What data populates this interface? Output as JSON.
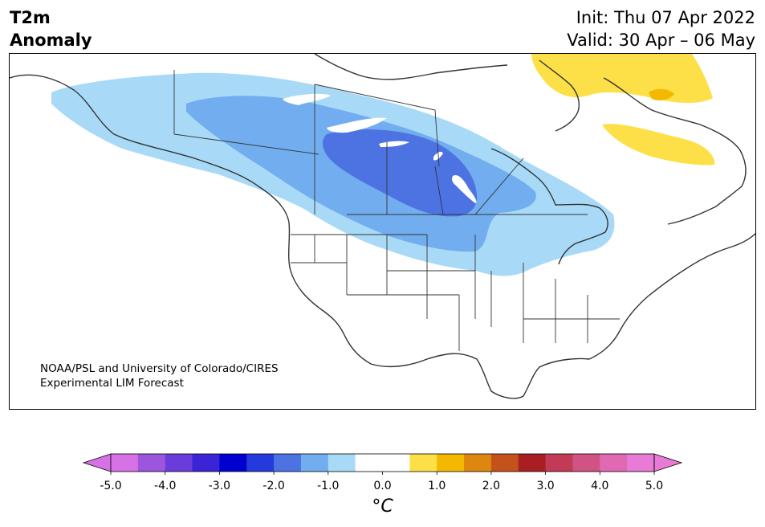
{
  "header": {
    "title_line1": "T2m",
    "title_line2": "Anomaly",
    "init": "Init: Thu 07 Apr 2022",
    "valid": "Valid: 30 Apr – 06 May"
  },
  "map": {
    "credit_line1": "NOAA/PSL and University of Colorado/CIRES",
    "credit_line2": "Experimental LIM Forecast",
    "colors": {
      "anom_m05": "#a8daf8",
      "anom_m10": "#72adef",
      "anom_m15": "#4d73e2",
      "anom_p05": "#fde047",
      "anom_p10": "#f5b800",
      "outline": "#333333"
    }
  },
  "colorbar": {
    "unit": "°C",
    "tick_labels": [
      "-5.0",
      "-4.0",
      "-3.0",
      "-2.0",
      "-1.0",
      "0.0",
      "1.0",
      "2.0",
      "3.0",
      "4.0",
      "5.0"
    ],
    "colors": [
      "#d771e6",
      "#9d55de",
      "#6a3cdb",
      "#3b23d6",
      "#0001cf",
      "#243adc",
      "#4d73e2",
      "#72adef",
      "#a8daf8",
      "#ffffff",
      "#ffffff",
      "#fde047",
      "#f5b800",
      "#de8710",
      "#c3521b",
      "#a81f23",
      "#c13b57",
      "#d15383",
      "#e069b3",
      "#e77bd5"
    ]
  }
}
